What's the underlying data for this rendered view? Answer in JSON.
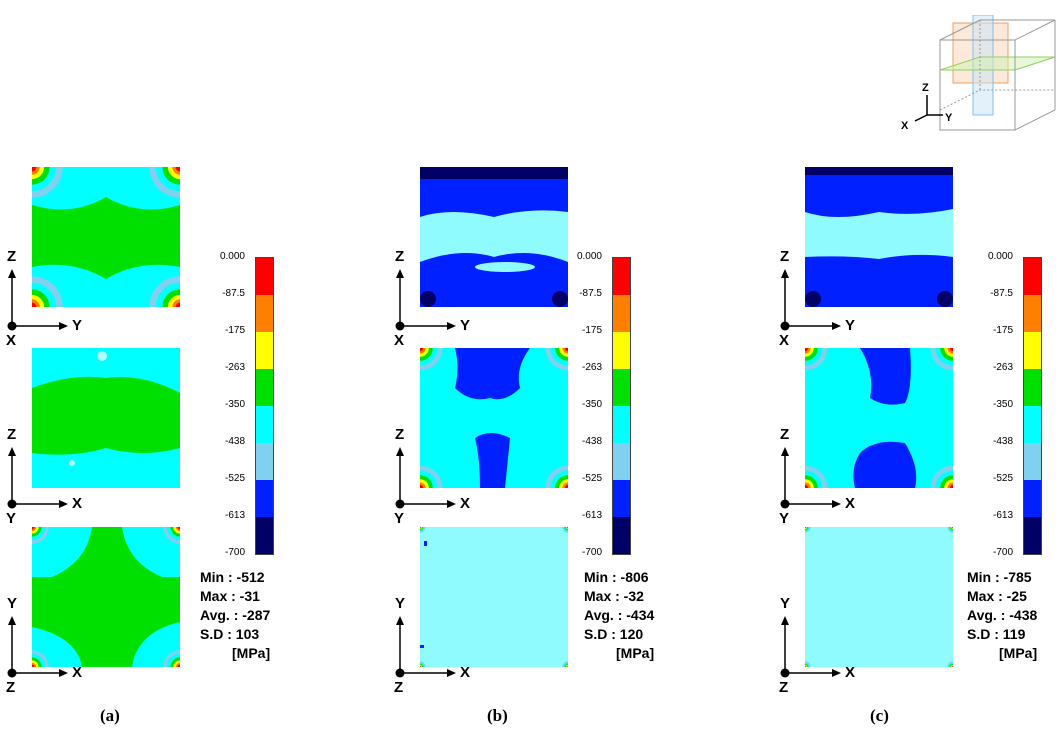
{
  "colorbar": {
    "ticks": [
      "0.000",
      "-87.5",
      "-175",
      "-263",
      "-350",
      "-438",
      "-525",
      "-613",
      "-700"
    ],
    "colors": [
      "#ff0000",
      "#ff8000",
      "#ffff00",
      "#00e000",
      "#00ffff",
      "#80d0f0",
      "#0020ff",
      "#000066"
    ]
  },
  "views": [
    {
      "up": "Z",
      "right": "Y",
      "out": "X"
    },
    {
      "up": "Z",
      "right": "X",
      "out": "Y"
    },
    {
      "up": "Y",
      "right": "X",
      "out": "Z"
    }
  ],
  "columns": [
    {
      "caption": "(a)",
      "stats": {
        "min": "Min : -512",
        "max": "Max : -31",
        "avg": "Avg. : -287",
        "sd": "S.D : 103",
        "unit": "[MPa]"
      }
    },
    {
      "caption": "(b)",
      "stats": {
        "min": "Min : -806",
        "max": "Max : -32",
        "avg": "Avg. : -434",
        "sd": "S.D : 120",
        "unit": "[MPa]"
      }
    },
    {
      "caption": "(c)",
      "stats": {
        "min": "Min : -785",
        "max": "Max : -25",
        "avg": "Avg. : -438",
        "sd": "S.D : 119",
        "unit": "[MPa]"
      }
    }
  ],
  "cube_icon": {
    "axes": {
      "z": "Z",
      "x": "X",
      "y": "Y"
    }
  }
}
